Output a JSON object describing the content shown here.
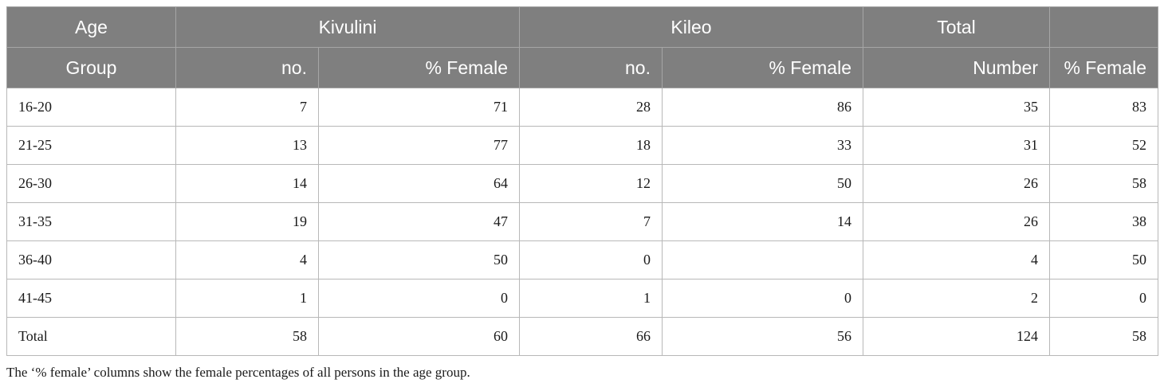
{
  "header": {
    "age_top": "Age",
    "age_bottom": "Group",
    "kivulini": "Kivulini",
    "kileo": "Kileo",
    "total": "Total",
    "total_extra": "",
    "sub": [
      "no.",
      "% Female",
      "no.",
      "% Female",
      "Number",
      "% Female"
    ]
  },
  "rows": [
    [
      "16-20",
      "7",
      "71",
      "28",
      "86",
      "35",
      "83"
    ],
    [
      "21-25",
      "13",
      "77",
      "18",
      "33",
      "31",
      "52"
    ],
    [
      "26-30",
      "14",
      "64",
      "12",
      "50",
      "26",
      "58"
    ],
    [
      "31-35",
      "19",
      "47",
      "7",
      "14",
      "26",
      "38"
    ],
    [
      "36-40",
      "4",
      "50",
      "0",
      "",
      "4",
      "50"
    ],
    [
      "41-45",
      "1",
      "0",
      "1",
      "0",
      "2",
      "0"
    ],
    [
      "Total",
      "58",
      "60",
      "66",
      "56",
      "124",
      "58"
    ]
  ],
  "footnote": "The ‘% female’ columns show the female percentages of all persons in the age group."
}
